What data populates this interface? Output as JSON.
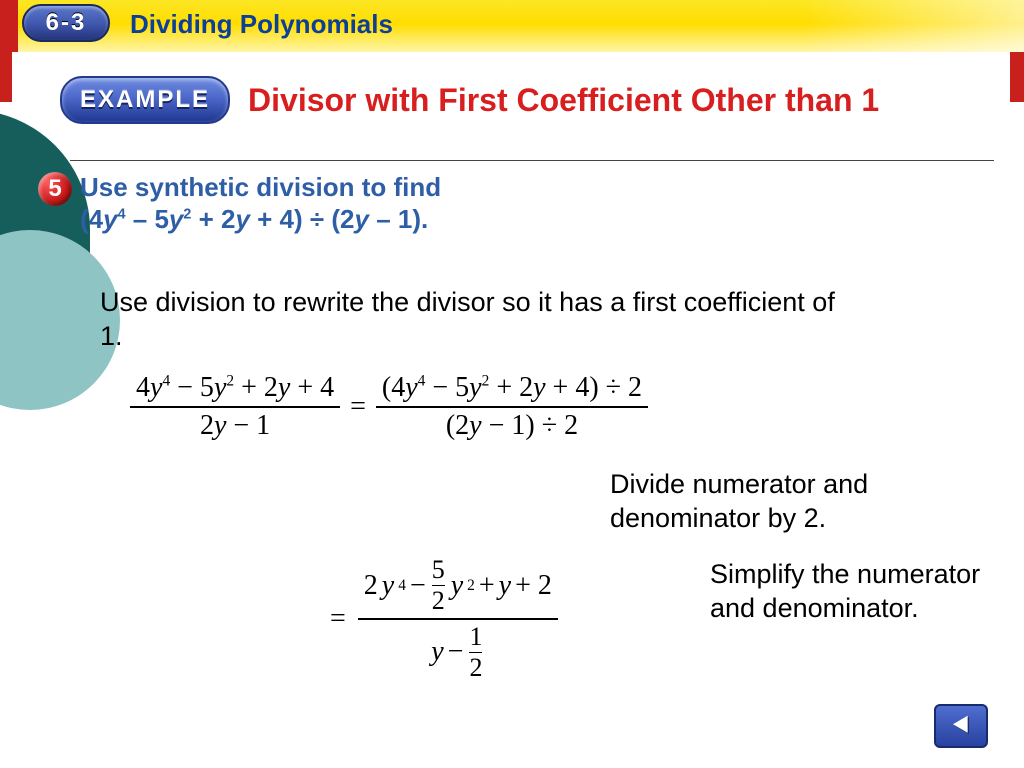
{
  "header": {
    "lesson_code": "6-3",
    "lesson_title": "Dividing Polynomials",
    "colors": {
      "bar_gradient_top": "#fce725",
      "bar_gradient_bottom": "#fff5a8",
      "pill_gradient_top": "#5a77c9",
      "pill_gradient_bottom": "#24347a",
      "title_color": "#0c3f97",
      "accent_red": "#c7201d"
    }
  },
  "example": {
    "label": "EXAMPLE",
    "title": "Divisor with First Coefficient Other than 1",
    "title_color": "#d81e1e"
  },
  "step": {
    "number": "5",
    "badge_color": "#c61818",
    "problem_html": "Use synthetic division to find (4<i>y</i><sup>4</sup> – 5<i>y</i><sup>2</sup> + 2<i>y</i> + 4) ÷ (2<i>y</i> – 1).",
    "problem_color": "#2e5ea6"
  },
  "body": {
    "line1": "Use division to rewrite the divisor so it has a first coefficient of 1.",
    "eq1": {
      "left_num": "4y^4 − 5y^2 + 2y + 4",
      "left_den": "2y − 1",
      "right_num": "(4y^4 − 5y^2 + 2y + 4) ÷ 2",
      "right_den": "(2y − 1) ÷ 2"
    },
    "explain1": "Divide numerator and denominator by 2.",
    "eq2": {
      "num": "2y^4 − (5/2)y^2 + y + 2",
      "den": "y − 1/2"
    },
    "explain2": "Simplify the numerator and denominator."
  },
  "nav": {
    "back_label": "Back"
  },
  "style": {
    "font_body_size_pt": 20,
    "font_problem_size_pt": 20,
    "math_font": "Times New Roman",
    "teal_back": "#165e5b",
    "teal_front": "#8fc4c4"
  }
}
